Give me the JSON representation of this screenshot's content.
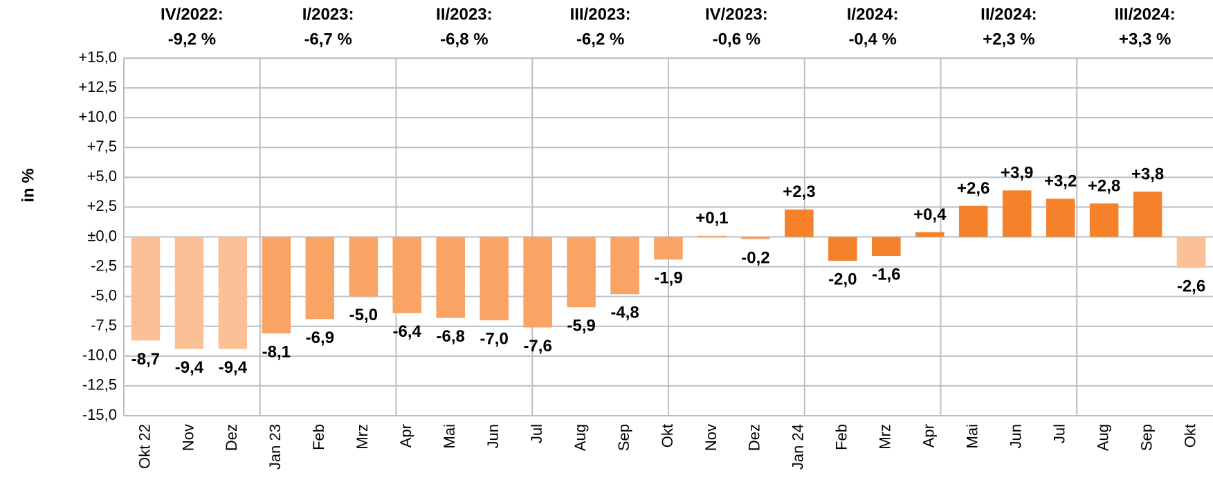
{
  "chart_data": {
    "type": "bar",
    "y_label": "in %",
    "categories": [
      "Okt 22",
      "Nov",
      "Dez",
      "Jan 23",
      "Feb",
      "Mrz",
      "Apr",
      "Mai",
      "Jun",
      "Jul",
      "Aug",
      "Sep",
      "Okt",
      "Nov",
      "Dez",
      "Jan 24",
      "Feb",
      "Mrz",
      "Apr",
      "Mai",
      "Jun",
      "Jul",
      "Aug",
      "Sep",
      "Okt"
    ],
    "values": [
      -8.7,
      -9.4,
      -9.4,
      -8.1,
      -6.9,
      -5.0,
      -6.4,
      -6.8,
      -7.0,
      -7.6,
      -5.9,
      -4.8,
      -1.9,
      0.1,
      -0.2,
      2.3,
      -2.0,
      -1.6,
      0.4,
      2.6,
      3.9,
      3.2,
      2.8,
      3.8,
      -2.6
    ],
    "value_labels": [
      "-8,7",
      "-9,4",
      "-9,4",
      "-8,1",
      "-6,9",
      "-5,0",
      "-6,4",
      "-6,8",
      "-7,0",
      "-7,6",
      "-5,9",
      "-4,8",
      "-1,9",
      "+0,1",
      "-0,2",
      "+2,3",
      "-2,0",
      "-1,6",
      "+0,4",
      "+2,6",
      "+3,9",
      "+3,2",
      "+2,8",
      "+3,8",
      "-2,6"
    ],
    "colors": [
      "#fbc096",
      "#fbc096",
      "#fbc096",
      "#f9a465",
      "#f9a465",
      "#f9a465",
      "#f9a465",
      "#f9a465",
      "#f9a465",
      "#f9a465",
      "#f9a465",
      "#f9a465",
      "#f9a465",
      "#f9a465",
      "#f9a465",
      "#f5822b",
      "#f5822b",
      "#f5822b",
      "#f5822b",
      "#f5822b",
      "#f5822b",
      "#f5822b",
      "#f5822b",
      "#f5822b",
      "#fbc096"
    ],
    "quarters": [
      {
        "period": "IV/2022:",
        "change": "-9,2 %"
      },
      {
        "period": "I/2023:",
        "change": "-6,7 %"
      },
      {
        "period": "II/2023:",
        "change": "-6,8 %"
      },
      {
        "period": "III/2023:",
        "change": "-6,2 %"
      },
      {
        "period": "IV/2023:",
        "change": "-0,6 %"
      },
      {
        "period": "I/2024:",
        "change": "-0,4 %"
      },
      {
        "period": "II/2024:",
        "change": "+2,3 %"
      },
      {
        "period": "III/2024:",
        "change": "+3,3 %"
      }
    ],
    "ylim": [
      -15,
      15
    ],
    "yticks": [
      {
        "value": -15,
        "label": "-15,0"
      },
      {
        "value": -12.5,
        "label": "-12,5"
      },
      {
        "value": -10,
        "label": "-10,0"
      },
      {
        "value": -7.5,
        "label": "-7,5"
      },
      {
        "value": -5,
        "label": "-5,0"
      },
      {
        "value": -2.5,
        "label": "-2,5"
      },
      {
        "value": 0,
        "label": "±0,0"
      },
      {
        "value": 2.5,
        "label": "+2,5"
      },
      {
        "value": 5,
        "label": "+5,0"
      },
      {
        "value": 7.5,
        "label": "+7,5"
      },
      {
        "value": 10,
        "label": "+10,0"
      },
      {
        "value": 12.5,
        "label": "+12,5"
      },
      {
        "value": 15,
        "label": "+15,0"
      }
    ],
    "grid": true
  }
}
